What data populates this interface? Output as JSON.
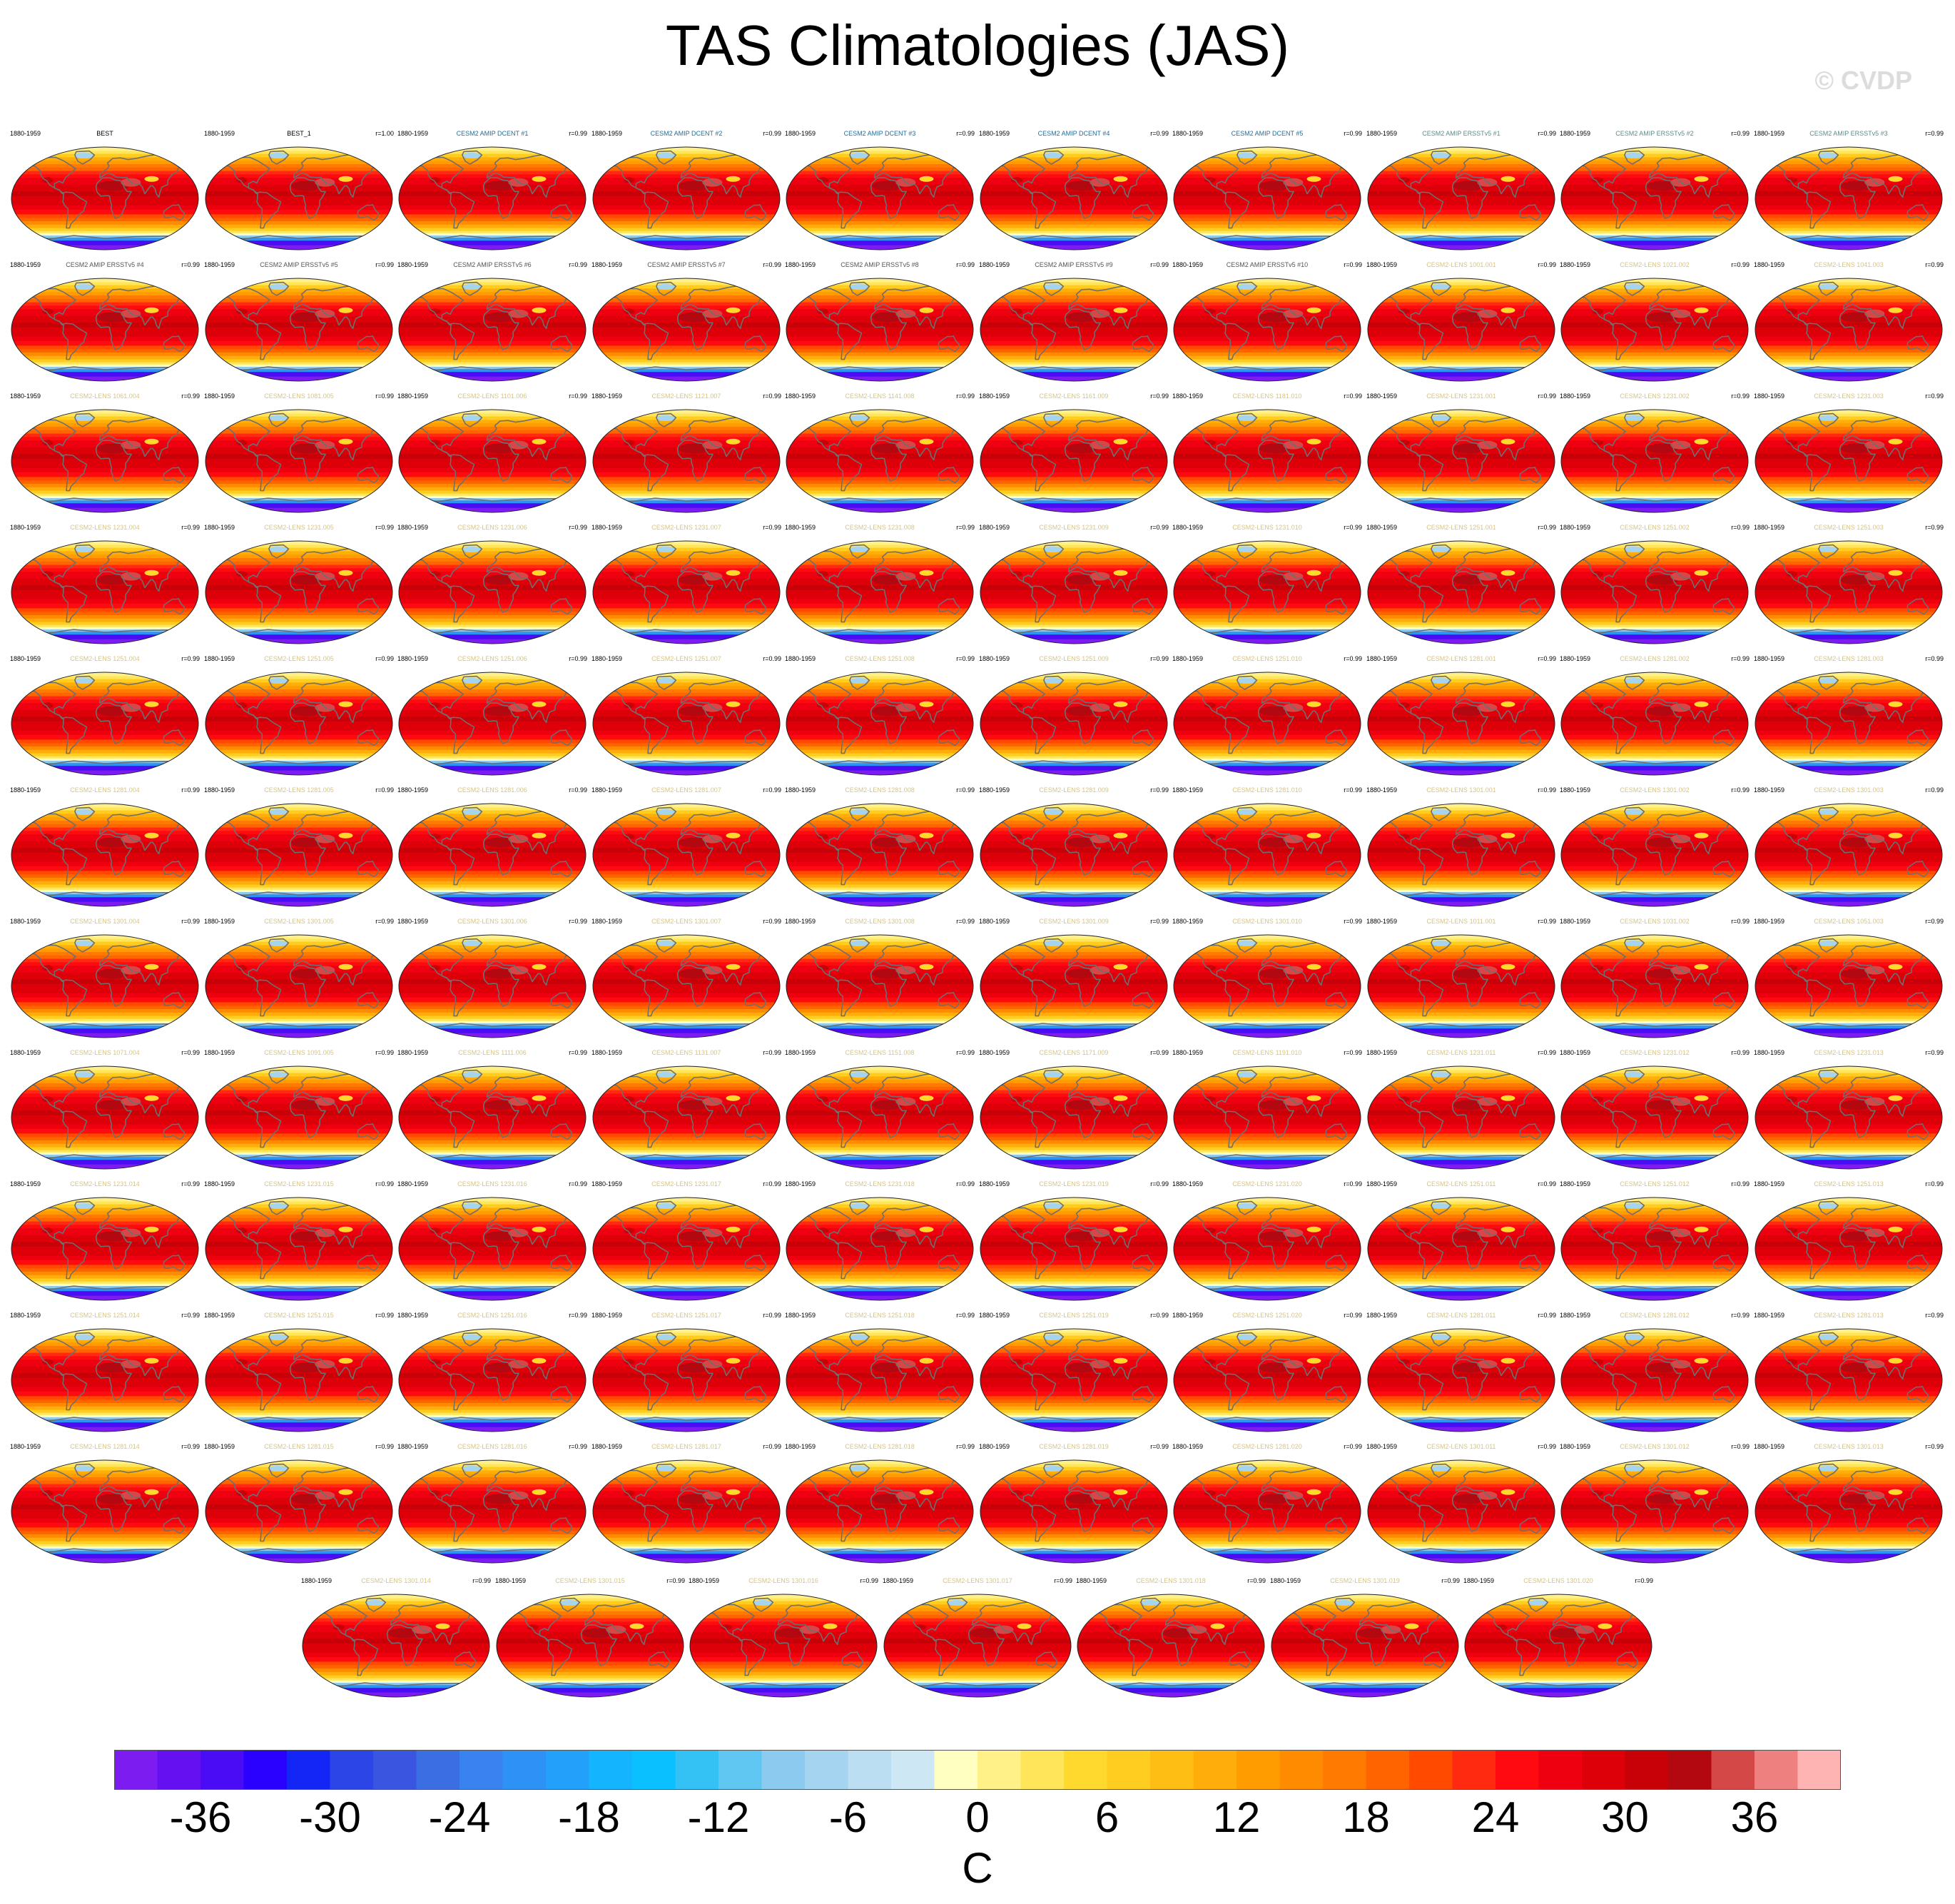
{
  "figure": {
    "title": "TAS Climatologies (JAS)",
    "watermark": "© CVDP"
  },
  "chart_data": {
    "type": "heatmap",
    "title": "TAS Climatologies (JAS)",
    "variable": "TAS",
    "season": "JAS",
    "projection": "global-robinson",
    "period": "1880-1959",
    "colorbar": {
      "units": "C",
      "min": -40,
      "max": 40,
      "interval": 2,
      "tick_labels": [
        "-36",
        "-30",
        "-24",
        "-18",
        "-12",
        "-6",
        "0",
        "6",
        "12",
        "18",
        "24",
        "30",
        "36"
      ],
      "colors": [
        "#7c1cf0",
        "#6410f0",
        "#4a0cf5",
        "#2a00ff",
        "#1426f5",
        "#2b45e6",
        "#3a55e0",
        "#3b6ee2",
        "#3a82f0",
        "#2e91f5",
        "#23a0fa",
        "#14b4ff",
        "#0ac0ff",
        "#34c2f5",
        "#60c6f2",
        "#8ccaf0",
        "#a5d4f0",
        "#bcdef2",
        "#cee7f5",
        "#ffffc2",
        "#fff088",
        "#ffe55a",
        "#ffd92d",
        "#ffcc20",
        "#ffbe14",
        "#ffad0a",
        "#ff9c00",
        "#ff8c00",
        "#ff7a00",
        "#ff6400",
        "#ff4a00",
        "#ff2a10",
        "#ff0a10",
        "#ee0010",
        "#dd0008",
        "#c80008",
        "#b40810",
        "#d44848",
        "#ee8080",
        "#ffb4b4"
      ]
    },
    "panels": [
      {
        "name": "BEST",
        "r": "",
        "color": "#000000"
      },
      {
        "name": "BEST_1",
        "r": "r=1.00",
        "color": "#000000"
      },
      {
        "name": "CESM2 AMIP DCENT #1",
        "r": "r=0.99",
        "color": "#1e6e9c"
      },
      {
        "name": "CESM2 AMIP DCENT #2",
        "r": "r=0.99",
        "color": "#1e6e9c"
      },
      {
        "name": "CESM2 AMIP DCENT #3",
        "r": "r=0.99",
        "color": "#1e6e9c"
      },
      {
        "name": "CESM2 AMIP DCENT #4",
        "r": "r=0.99",
        "color": "#1e6e9c"
      },
      {
        "name": "CESM2 AMIP DCENT #5",
        "r": "r=0.99",
        "color": "#1e6e9c"
      },
      {
        "name": "CESM2 AMIP ERSSTv5 #1",
        "r": "r=0.99",
        "color": "#5c8c8c"
      },
      {
        "name": "CESM2 AMIP ERSSTv5 #2",
        "r": "r=0.99",
        "color": "#5c8c8c"
      },
      {
        "name": "CESM2 AMIP ERSSTv5 #3",
        "r": "r=0.99",
        "color": "#5c8c8c"
      },
      {
        "name": "CESM2 AMIP ERSSTv5 #4",
        "r": "r=0.99",
        "color": "#555555"
      },
      {
        "name": "CESM2 AMIP ERSSTv5 #5",
        "r": "r=0.99",
        "color": "#555555"
      },
      {
        "name": "CESM2 AMIP ERSSTv5 #6",
        "r": "r=0.99",
        "color": "#555555"
      },
      {
        "name": "CESM2 AMIP ERSSTv5 #7",
        "r": "r=0.99",
        "color": "#555555"
      },
      {
        "name": "CESM2 AMIP ERSSTv5 #8",
        "r": "r=0.99",
        "color": "#555555"
      },
      {
        "name": "CESM2 AMIP ERSSTv5 #9",
        "r": "r=0.99",
        "color": "#555555"
      },
      {
        "name": "CESM2 AMIP ERSSTv5 #10",
        "r": "r=0.99",
        "color": "#555555"
      },
      {
        "name": "CESM2-LENS 1001.001",
        "r": "r=0.99",
        "color": "#d4c488"
      },
      {
        "name": "CESM2-LENS 1021.002",
        "r": "r=0.99",
        "color": "#d4c488"
      },
      {
        "name": "CESM2-LENS 1041.003",
        "r": "r=0.99",
        "color": "#d4c488"
      },
      {
        "name": "CESM2-LENS 1061.004",
        "r": "r=0.99",
        "color": "#d4c488"
      },
      {
        "name": "CESM2-LENS 1081.005",
        "r": "r=0.99",
        "color": "#d4c488"
      },
      {
        "name": "CESM2-LENS 1101.006",
        "r": "r=0.99",
        "color": "#d4c488"
      },
      {
        "name": "CESM2-LENS 1121.007",
        "r": "r=0.99",
        "color": "#d4c488"
      },
      {
        "name": "CESM2-LENS 1141.008",
        "r": "r=0.99",
        "color": "#d4c488"
      },
      {
        "name": "CESM2-LENS 1161.009",
        "r": "r=0.99",
        "color": "#d4c488"
      },
      {
        "name": "CESM2-LENS 1181.010",
        "r": "r=0.99",
        "color": "#d4c488"
      },
      {
        "name": "CESM2-LENS 1231.001",
        "r": "r=0.99",
        "color": "#d4c488"
      },
      {
        "name": "CESM2-LENS 1231.002",
        "r": "r=0.99",
        "color": "#d4c488"
      },
      {
        "name": "CESM2-LENS 1231.003",
        "r": "r=0.99",
        "color": "#d4c488"
      },
      {
        "name": "CESM2-LENS 1231.004",
        "r": "r=0.99",
        "color": "#d4c488"
      },
      {
        "name": "CESM2-LENS 1231.005",
        "r": "r=0.99",
        "color": "#d4c488"
      },
      {
        "name": "CESM2-LENS 1231.006",
        "r": "r=0.99",
        "color": "#d4c488"
      },
      {
        "name": "CESM2-LENS 1231.007",
        "r": "r=0.99",
        "color": "#d4c488"
      },
      {
        "name": "CESM2-LENS 1231.008",
        "r": "r=0.99",
        "color": "#d4c488"
      },
      {
        "name": "CESM2-LENS 1231.009",
        "r": "r=0.99",
        "color": "#d4c488"
      },
      {
        "name": "CESM2-LENS 1231.010",
        "r": "r=0.99",
        "color": "#d4c488"
      },
      {
        "name": "CESM2-LENS 1251.001",
        "r": "r=0.99",
        "color": "#d4c488"
      },
      {
        "name": "CESM2-LENS 1251.002",
        "r": "r=0.99",
        "color": "#d4c488"
      },
      {
        "name": "CESM2-LENS 1251.003",
        "r": "r=0.99",
        "color": "#d4c488"
      },
      {
        "name": "CESM2-LENS 1251.004",
        "r": "r=0.99",
        "color": "#d4c488"
      },
      {
        "name": "CESM2-LENS 1251.005",
        "r": "r=0.99",
        "color": "#d4c488"
      },
      {
        "name": "CESM2-LENS 1251.006",
        "r": "r=0.99",
        "color": "#d4c488"
      },
      {
        "name": "CESM2-LENS 1251.007",
        "r": "r=0.99",
        "color": "#d4c488"
      },
      {
        "name": "CESM2-LENS 1251.008",
        "r": "r=0.99",
        "color": "#d4c488"
      },
      {
        "name": "CESM2-LENS 1251.009",
        "r": "r=0.99",
        "color": "#d4c488"
      },
      {
        "name": "CESM2-LENS 1251.010",
        "r": "r=0.99",
        "color": "#d4c488"
      },
      {
        "name": "CESM2-LENS 1281.001",
        "r": "r=0.99",
        "color": "#d4c488"
      },
      {
        "name": "CESM2-LENS 1281.002",
        "r": "r=0.99",
        "color": "#d4c488"
      },
      {
        "name": "CESM2-LENS 1281.003",
        "r": "r=0.99",
        "color": "#d4c488"
      },
      {
        "name": "CESM2-LENS 1281.004",
        "r": "r=0.99",
        "color": "#d4c488"
      },
      {
        "name": "CESM2-LENS 1281.005",
        "r": "r=0.99",
        "color": "#d4c488"
      },
      {
        "name": "CESM2-LENS 1281.006",
        "r": "r=0.99",
        "color": "#d4c488"
      },
      {
        "name": "CESM2-LENS 1281.007",
        "r": "r=0.99",
        "color": "#d4c488"
      },
      {
        "name": "CESM2-LENS 1281.008",
        "r": "r=0.99",
        "color": "#d4c488"
      },
      {
        "name": "CESM2-LENS 1281.009",
        "r": "r=0.99",
        "color": "#d4c488"
      },
      {
        "name": "CESM2-LENS 1281.010",
        "r": "r=0.99",
        "color": "#d4c488"
      },
      {
        "name": "CESM2-LENS 1301.001",
        "r": "r=0.99",
        "color": "#d4c488"
      },
      {
        "name": "CESM2-LENS 1301.002",
        "r": "r=0.99",
        "color": "#d4c488"
      },
      {
        "name": "CESM2-LENS 1301.003",
        "r": "r=0.99",
        "color": "#d4c488"
      },
      {
        "name": "CESM2-LENS 1301.004",
        "r": "r=0.99",
        "color": "#d4c488"
      },
      {
        "name": "CESM2-LENS 1301.005",
        "r": "r=0.99",
        "color": "#d4c488"
      },
      {
        "name": "CESM2-LENS 1301.006",
        "r": "r=0.99",
        "color": "#d4c488"
      },
      {
        "name": "CESM2-LENS 1301.007",
        "r": "r=0.99",
        "color": "#d4c488"
      },
      {
        "name": "CESM2-LENS 1301.008",
        "r": "r=0.99",
        "color": "#d4c488"
      },
      {
        "name": "CESM2-LENS 1301.009",
        "r": "r=0.99",
        "color": "#d4c488"
      },
      {
        "name": "CESM2-LENS 1301.010",
        "r": "r=0.99",
        "color": "#d4c488"
      },
      {
        "name": "CESM2-LENS 1011.001",
        "r": "r=0.99",
        "color": "#d4c488"
      },
      {
        "name": "CESM2-LENS 1031.002",
        "r": "r=0.99",
        "color": "#d4c488"
      },
      {
        "name": "CESM2-LENS 1051.003",
        "r": "r=0.99",
        "color": "#d4c488"
      },
      {
        "name": "CESM2-LENS 1071.004",
        "r": "r=0.99",
        "color": "#d4c488"
      },
      {
        "name": "CESM2-LENS 1091.005",
        "r": "r=0.99",
        "color": "#d4c488"
      },
      {
        "name": "CESM2-LENS 1111.006",
        "r": "r=0.99",
        "color": "#d4c488"
      },
      {
        "name": "CESM2-LENS 1131.007",
        "r": "r=0.99",
        "color": "#d4c488"
      },
      {
        "name": "CESM2-LENS 1151.008",
        "r": "r=0.99",
        "color": "#d4c488"
      },
      {
        "name": "CESM2-LENS 1171.009",
        "r": "r=0.99",
        "color": "#d4c488"
      },
      {
        "name": "CESM2-LENS 1191.010",
        "r": "r=0.99",
        "color": "#d4c488"
      },
      {
        "name": "CESM2-LENS 1231.011",
        "r": "r=0.99",
        "color": "#d4c488"
      },
      {
        "name": "CESM2-LENS 1231.012",
        "r": "r=0.99",
        "color": "#d4c488"
      },
      {
        "name": "CESM2-LENS 1231.013",
        "r": "r=0.99",
        "color": "#d4c488"
      },
      {
        "name": "CESM2-LENS 1231.014",
        "r": "r=0.99",
        "color": "#d4c488"
      },
      {
        "name": "CESM2-LENS 1231.015",
        "r": "r=0.99",
        "color": "#d4c488"
      },
      {
        "name": "CESM2-LENS 1231.016",
        "r": "r=0.99",
        "color": "#d4c488"
      },
      {
        "name": "CESM2-LENS 1231.017",
        "r": "r=0.99",
        "color": "#d4c488"
      },
      {
        "name": "CESM2-LENS 1231.018",
        "r": "r=0.99",
        "color": "#d4c488"
      },
      {
        "name": "CESM2-LENS 1231.019",
        "r": "r=0.99",
        "color": "#d4c488"
      },
      {
        "name": "CESM2-LENS 1231.020",
        "r": "r=0.99",
        "color": "#d4c488"
      },
      {
        "name": "CESM2-LENS 1251.011",
        "r": "r=0.99",
        "color": "#d4c488"
      },
      {
        "name": "CESM2-LENS 1251.012",
        "r": "r=0.99",
        "color": "#d4c488"
      },
      {
        "name": "CESM2-LENS 1251.013",
        "r": "r=0.99",
        "color": "#d4c488"
      },
      {
        "name": "CESM2-LENS 1251.014",
        "r": "r=0.99",
        "color": "#d4c488"
      },
      {
        "name": "CESM2-LENS 1251.015",
        "r": "r=0.99",
        "color": "#d4c488"
      },
      {
        "name": "CESM2-LENS 1251.016",
        "r": "r=0.99",
        "color": "#d4c488"
      },
      {
        "name": "CESM2-LENS 1251.017",
        "r": "r=0.99",
        "color": "#d4c488"
      },
      {
        "name": "CESM2-LENS 1251.018",
        "r": "r=0.99",
        "color": "#d4c488"
      },
      {
        "name": "CESM2-LENS 1251.019",
        "r": "r=0.99",
        "color": "#d4c488"
      },
      {
        "name": "CESM2-LENS 1251.020",
        "r": "r=0.99",
        "color": "#d4c488"
      },
      {
        "name": "CESM2-LENS 1281.011",
        "r": "r=0.99",
        "color": "#d4c488"
      },
      {
        "name": "CESM2-LENS 1281.012",
        "r": "r=0.99",
        "color": "#d4c488"
      },
      {
        "name": "CESM2-LENS 1281.013",
        "r": "r=0.99",
        "color": "#d4c488"
      },
      {
        "name": "CESM2-LENS 1281.014",
        "r": "r=0.99",
        "color": "#d4c488"
      },
      {
        "name": "CESM2-LENS 1281.015",
        "r": "r=0.99",
        "color": "#d4c488"
      },
      {
        "name": "CESM2-LENS 1281.016",
        "r": "r=0.99",
        "color": "#d4c488"
      },
      {
        "name": "CESM2-LENS 1281.017",
        "r": "r=0.99",
        "color": "#d4c488"
      },
      {
        "name": "CESM2-LENS 1281.018",
        "r": "r=0.99",
        "color": "#d4c488"
      },
      {
        "name": "CESM2-LENS 1281.019",
        "r": "r=0.99",
        "color": "#d4c488"
      },
      {
        "name": "CESM2-LENS 1281.020",
        "r": "r=0.99",
        "color": "#d4c488"
      },
      {
        "name": "CESM2-LENS 1301.011",
        "r": "r=0.99",
        "color": "#d4c488"
      },
      {
        "name": "CESM2-LENS 1301.012",
        "r": "r=0.99",
        "color": "#d4c488"
      },
      {
        "name": "CESM2-LENS 1301.013",
        "r": "r=0.99",
        "color": "#d4c488"
      },
      {
        "name": "CESM2-LENS 1301.014",
        "r": "r=0.99",
        "color": "#d4c488"
      },
      {
        "name": "CESM2-LENS 1301.015",
        "r": "r=0.99",
        "color": "#d4c488"
      },
      {
        "name": "CESM2-LENS 1301.016",
        "r": "r=0.99",
        "color": "#d4c488"
      },
      {
        "name": "CESM2-LENS 1301.017",
        "r": "r=0.99",
        "color": "#d4c488"
      },
      {
        "name": "CESM2-LENS 1301.018",
        "r": "r=0.99",
        "color": "#d4c488"
      },
      {
        "name": "CESM2-LENS 1301.019",
        "r": "r=0.99",
        "color": "#d4c488"
      },
      {
        "name": "CESM2-LENS 1301.020",
        "r": "r=0.99",
        "color": "#d4c488"
      }
    ]
  }
}
